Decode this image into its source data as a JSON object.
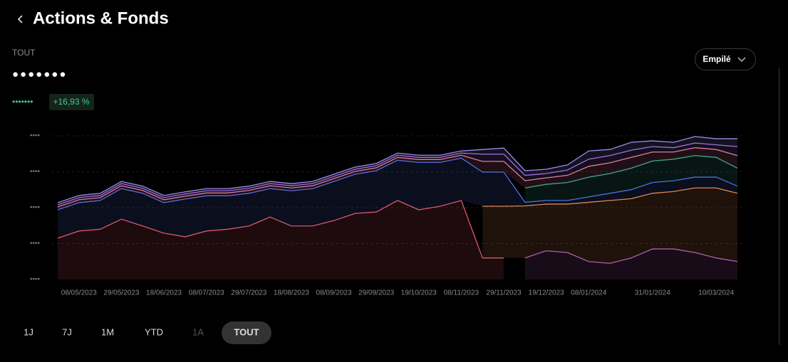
{
  "header": {
    "title": "Actions & Fonds"
  },
  "summary": {
    "label": "TOUT",
    "value": "●●●●●●●",
    "change_value": "•••••••",
    "change_pct": "+16,93 %"
  },
  "controls": {
    "view": "Empilé",
    "periods": [
      "1J",
      "7J",
      "1M",
      "YTD",
      "1A",
      "TOUT"
    ],
    "selected": 5,
    "disabled": [
      4
    ]
  },
  "chart_data": {
    "type": "area",
    "stacked": true,
    "grid": true,
    "categories": [
      null,
      "08/05/2023",
      null,
      "29/05/2023",
      null,
      "18/06/2023",
      null,
      "08/07/2023",
      null,
      "29/07/2023",
      null,
      "18/08/2023",
      null,
      "08/09/2023",
      null,
      "29/09/2023",
      null,
      "19/10/2023",
      null,
      "08/11/2023",
      null,
      "29/11/2023",
      null,
      "19/12/2023",
      null,
      "08/01/2024",
      null,
      null,
      "31/01/2024",
      null,
      null,
      "10/03/2024",
      null
    ],
    "ylim": [
      0,
      4
    ],
    "yticks": [
      {
        "value": 0,
        "label": "••••"
      },
      {
        "value": 1,
        "label": "••••"
      },
      {
        "value": 2,
        "label": "••••"
      },
      {
        "value": 3,
        "label": "••••"
      },
      {
        "value": 4,
        "label": "••••"
      }
    ],
    "series": [
      {
        "color": "#e0566a",
        "values": [
          1.15,
          1.35,
          1.4,
          1.68,
          1.49,
          1.29,
          1.19,
          1.35,
          1.4,
          1.49,
          1.74,
          1.49,
          1.49,
          1.64,
          1.84,
          1.88,
          2.2,
          1.94,
          2.04,
          2.2,
          0.6,
          0.6,
          null,
          null,
          null,
          null,
          null,
          null,
          null,
          null,
          null,
          null,
          null
        ]
      },
      {
        "color": "#b05ab8",
        "values": [
          null,
          null,
          null,
          null,
          null,
          null,
          null,
          null,
          null,
          null,
          null,
          null,
          null,
          null,
          null,
          null,
          null,
          null,
          null,
          null,
          null,
          null,
          0.6,
          0.8,
          0.75,
          0.5,
          0.45,
          0.6,
          0.85,
          0.85,
          0.75,
          0.6,
          0.5
        ]
      },
      {
        "color": "#e88a4a",
        "values": [
          null,
          null,
          null,
          null,
          null,
          null,
          null,
          null,
          null,
          null,
          null,
          null,
          null,
          null,
          null,
          null,
          null,
          null,
          null,
          null,
          1.44,
          1.44,
          1.45,
          1.3,
          1.35,
          1.65,
          1.75,
          1.65,
          1.55,
          1.6,
          1.8,
          1.95,
          1.9
        ]
      },
      {
        "color": "#4c6fe0",
        "values": [
          0.79,
          0.79,
          0.8,
          0.85,
          0.91,
          0.85,
          1.05,
          0.98,
          0.93,
          0.91,
          0.79,
          0.98,
          1.04,
          1.09,
          1.09,
          1.15,
          1.12,
          1.32,
          1.22,
          1.18,
          0.95,
          0.95,
          0.1,
          0.1,
          0.1,
          0.15,
          0.2,
          0.25,
          0.3,
          0.3,
          0.3,
          0.3,
          0.2
        ]
      },
      {
        "color": "#3aa890",
        "values": [
          null,
          null,
          null,
          null,
          null,
          null,
          null,
          null,
          null,
          null,
          null,
          null,
          null,
          null,
          null,
          null,
          null,
          null,
          null,
          null,
          null,
          null,
          0.4,
          0.45,
          0.5,
          0.55,
          0.55,
          0.6,
          0.6,
          0.6,
          0.6,
          0.55,
          0.5
        ]
      },
      {
        "color": "#e87ca0",
        "values": [
          0.08,
          0.08,
          0.08,
          0.08,
          0.08,
          0.08,
          0.08,
          0.08,
          0.08,
          0.08,
          0.08,
          0.08,
          0.08,
          0.08,
          0.08,
          0.08,
          0.08,
          0.08,
          0.08,
          0.08,
          0.3,
          0.3,
          0.2,
          0.18,
          0.2,
          0.3,
          0.3,
          0.3,
          0.25,
          0.2,
          0.22,
          0.22,
          0.35
        ]
      },
      {
        "color": "#a070e0",
        "values": [
          0.06,
          0.06,
          0.06,
          0.06,
          0.06,
          0.06,
          0.06,
          0.06,
          0.06,
          0.06,
          0.06,
          0.06,
          0.06,
          0.06,
          0.06,
          0.06,
          0.06,
          0.06,
          0.06,
          0.06,
          0.2,
          0.2,
          0.15,
          0.12,
          0.15,
          0.2,
          0.2,
          0.2,
          0.15,
          0.12,
          0.13,
          0.13,
          0.25
        ]
      },
      {
        "color": "#9a8ef0",
        "values": [
          0.06,
          0.06,
          0.06,
          0.06,
          0.06,
          0.06,
          0.06,
          0.06,
          0.06,
          0.06,
          0.06,
          0.06,
          0.06,
          0.06,
          0.06,
          0.06,
          0.06,
          0.06,
          0.06,
          0.06,
          0.13,
          0.17,
          0.13,
          0.12,
          0.14,
          0.23,
          0.17,
          0.22,
          0.16,
          0.15,
          0.18,
          0.17,
          0.22
        ]
      }
    ]
  }
}
